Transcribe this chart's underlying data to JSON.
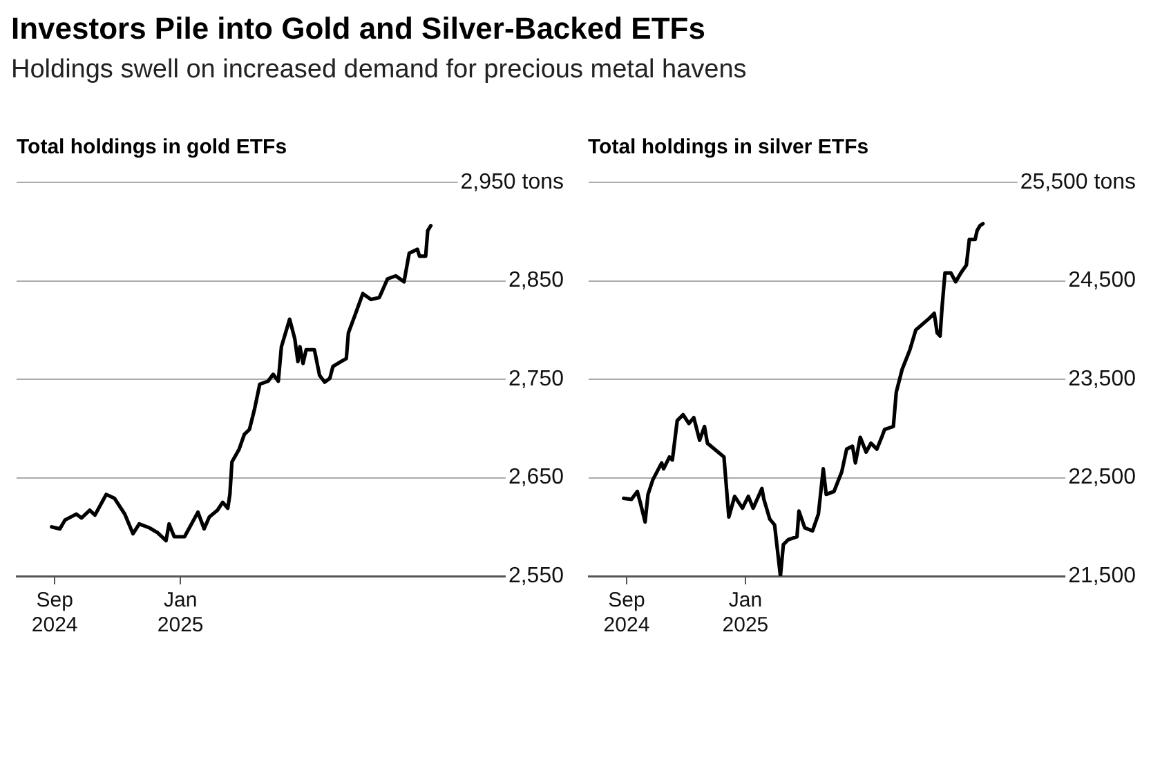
{
  "chart_data": [
    {
      "type": "line",
      "title": "Investors Pile into Gold and Silver-Backed ETFs",
      "subtitle": "Holdings swell on increased demand for precious metal havens",
      "ylabel": "Total holdings in gold ETFs",
      "series": [
        {
          "color": "#000000",
          "x": [
            "2024-08-29",
            "2024-09-06",
            "2024-09-11",
            "2024-09-22",
            "2024-09-27",
            "2024-10-05",
            "2024-10-10",
            "2024-10-21",
            "2024-10-29",
            "2024-11-08",
            "2024-11-16",
            "2024-11-22",
            "2024-12-02",
            "2024-12-10",
            "2024-12-18",
            "2024-12-21",
            "2024-12-26",
            "2025-01-05",
            "2025-01-18",
            "2025-01-24",
            "2025-01-29",
            "2025-02-06",
            "2025-02-11",
            "2025-02-16",
            "2025-02-18",
            "2025-02-20",
            "2025-02-27",
            "2025-03-04",
            "2025-03-09",
            "2025-03-14",
            "2025-03-19",
            "2025-03-27",
            "2025-04-01",
            "2025-04-06",
            "2025-04-09",
            "2025-04-17",
            "2025-04-22",
            "2025-04-25",
            "2025-04-27",
            "2025-04-30",
            "2025-05-03",
            "2025-05-11",
            "2025-05-16",
            "2025-05-21",
            "2025-05-26",
            "2025-05-29",
            "2025-06-06",
            "2025-06-11",
            "2025-06-13",
            "2025-06-19",
            "2025-06-27",
            "2025-07-05",
            "2025-07-13",
            "2025-07-21",
            "2025-07-29",
            "2025-08-06",
            "2025-08-11",
            "2025-08-19",
            "2025-08-21",
            "2025-08-27",
            "2025-08-29",
            "2025-09-01"
          ],
          "values": [
            2600,
            2598,
            2607,
            2613,
            2609,
            2617,
            2612,
            2633,
            2629,
            2613,
            2593,
            2603,
            2599,
            2594,
            2586,
            2603,
            2590,
            2590,
            2615,
            2598,
            2610,
            2617,
            2625,
            2619,
            2633,
            2666,
            2679,
            2694,
            2699,
            2720,
            2745,
            2748,
            2755,
            2748,
            2783,
            2811,
            2791,
            2768,
            2783,
            2766,
            2780,
            2780,
            2754,
            2747,
            2751,
            2763,
            2768,
            2771,
            2797,
            2814,
            2837,
            2831,
            2833,
            2852,
            2855,
            2849,
            2878,
            2882,
            2875,
            2875,
            2901,
            2906
          ]
        }
      ],
      "xlim": [
        "2024-07-26",
        "2026-01-08"
      ],
      "xticks": [
        {
          "value": "2024-09",
          "label": "Sep 2024"
        },
        {
          "value": "2025-01",
          "label": "Jan 2025"
        }
      ],
      "ylim": [
        2550,
        2950
      ],
      "yticks": [
        {
          "value": 2550,
          "label": "2,550"
        },
        {
          "value": 2650,
          "label": "2,650"
        },
        {
          "value": 2750,
          "label": "2,750"
        },
        {
          "value": 2850,
          "label": "2,850"
        },
        {
          "value": 2950,
          "label": "2,950 tons"
        }
      ],
      "grid": "y"
    },
    {
      "type": "line",
      "ylabel": "Total holdings in silver ETFs",
      "series": [
        {
          "color": "#000000",
          "x": [
            "2024-08-29",
            "2024-09-06",
            "2024-09-12",
            "2024-09-15",
            "2024-09-20",
            "2024-09-23",
            "2024-09-28",
            "2024-10-07",
            "2024-10-09",
            "2024-10-15",
            "2024-10-18",
            "2024-10-23",
            "2024-10-29",
            "2024-11-04",
            "2024-11-09",
            "2024-11-15",
            "2024-11-20",
            "2024-11-23",
            "2024-12-04",
            "2024-12-10",
            "2024-12-15",
            "2024-12-21",
            "2024-12-29",
            "2025-01-04",
            "2025-01-09",
            "2025-01-18",
            "2025-01-20",
            "2025-01-26",
            "2025-01-31",
            "2025-02-03",
            "2025-02-06",
            "2025-02-09",
            "2025-02-14",
            "2025-02-23",
            "2025-02-25",
            "2025-03-03",
            "2025-03-11",
            "2025-03-17",
            "2025-03-22",
            "2025-03-25",
            "2025-04-02",
            "2025-04-10",
            "2025-04-15",
            "2025-04-21",
            "2025-04-24",
            "2025-04-29",
            "2025-05-05",
            "2025-05-10",
            "2025-05-16",
            "2025-05-21",
            "2025-05-24",
            "2025-06-02",
            "2025-06-05",
            "2025-06-11",
            "2025-06-19",
            "2025-06-25",
            "2025-07-09",
            "2025-07-14",
            "2025-07-17",
            "2025-07-20",
            "2025-07-22",
            "2025-07-25",
            "2025-07-31",
            "2025-08-05",
            "2025-08-11",
            "2025-08-16",
            "2025-08-19",
            "2025-08-25",
            "2025-08-27",
            "2025-08-30",
            "2025-09-02"
          ],
          "values": [
            22290,
            22280,
            22360,
            22250,
            22050,
            22330,
            22480,
            22650,
            22590,
            22710,
            22680,
            23080,
            23140,
            23050,
            23110,
            22880,
            23020,
            22850,
            22760,
            22710,
            22100,
            22310,
            22190,
            22310,
            22190,
            22390,
            22280,
            22080,
            22020,
            21760,
            21500,
            21820,
            21870,
            21900,
            22160,
            21990,
            21960,
            22130,
            22590,
            22330,
            22360,
            22560,
            22790,
            22820,
            22650,
            22910,
            22760,
            22850,
            22790,
            22910,
            22990,
            23020,
            23370,
            23600,
            23800,
            24000,
            24120,
            24170,
            23970,
            23940,
            24230,
            24580,
            24580,
            24490,
            24590,
            24660,
            24920,
            24920,
            25010,
            25060,
            25080
          ]
        }
      ],
      "xlim": [
        "2024-07-24",
        "2026-02-06"
      ],
      "xticks": [
        {
          "value": "2024-09",
          "label": "Sep 2024"
        },
        {
          "value": "2025-01",
          "label": "Jan 2025"
        }
      ],
      "ylim": [
        21500,
        25500
      ],
      "yticks": [
        {
          "value": 21500,
          "label": "21,500"
        },
        {
          "value": 22500,
          "label": "22,500"
        },
        {
          "value": 23500,
          "label": "23,500"
        },
        {
          "value": 24500,
          "label": "24,500"
        },
        {
          "value": 25500,
          "label": "25,500 tons"
        }
      ],
      "grid": "y"
    }
  ]
}
